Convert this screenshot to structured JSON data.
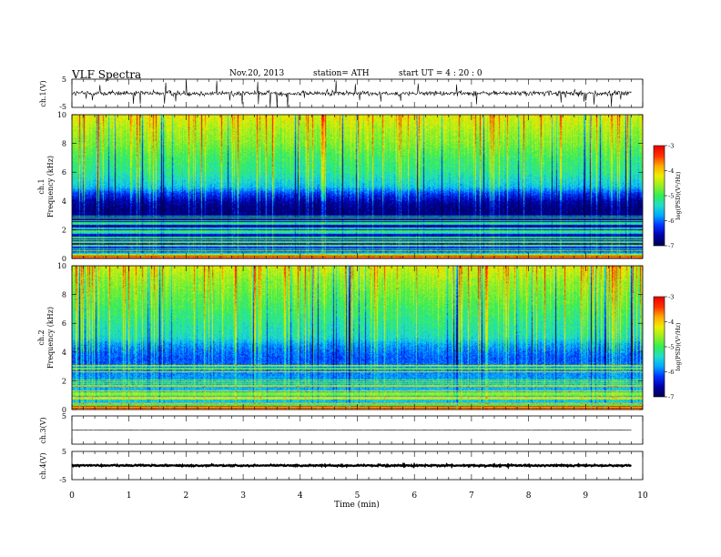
{
  "header": {
    "title": "VLF  Spectra",
    "date": "Nov.20, 2013",
    "station": "station= ATH",
    "start": "start  UT  =   4  : 20 : 0"
  },
  "colors": {
    "colormap": [
      "#000055",
      "#0000aa",
      "#0033ff",
      "#00aaff",
      "#22ddcc",
      "#33ee55",
      "#99ee22",
      "#eeee00",
      "#ffaa00",
      "#ff3300",
      "#ee0000",
      "#ffffff"
    ],
    "trace": "#000000",
    "frame": "#000000"
  },
  "chart_data": [
    {
      "type": "line",
      "panel": "ch1-waveform",
      "ylabel": "ch.1(V)",
      "ylim": [
        -5,
        5
      ],
      "yticks": [
        "5",
        "-5"
      ],
      "xlim": [
        0,
        10
      ],
      "signal_extent_min": 9.8,
      "baseline_v": 0,
      "noise_amplitude_v": 0.9,
      "impulsive_spikes": true
    },
    {
      "type": "heatmap",
      "panel": "ch1-spectrogram",
      "ylabel_top": "ch.1",
      "ylabel": "Frequency  (kHz)",
      "ylim": [
        0,
        10
      ],
      "yticks": [
        "0",
        "2",
        "4",
        "6",
        "8",
        "10"
      ],
      "xlim": [
        0,
        10
      ],
      "colorbar": {
        "label": "log(PSD)(V²/Hz)",
        "range": [
          -7,
          -3
        ],
        "ticks": [
          "-3",
          "-4",
          "-5",
          "-6",
          "-7"
        ]
      },
      "freq_profile_khz": [
        0,
        0.5,
        1,
        1.5,
        2,
        2.5,
        3,
        3.5,
        4,
        4.5,
        5,
        6,
        7,
        8,
        9,
        10
      ],
      "logpsd_profile": [
        -3.6,
        -6.3,
        -6.4,
        -6.5,
        -6.5,
        -6.7,
        -6.8,
        -6.8,
        -6.6,
        -6.2,
        -5.6,
        -5.2,
        -5.0,
        -4.7,
        -4.5,
        -4.2
      ]
    },
    {
      "type": "heatmap",
      "panel": "ch2-spectrogram",
      "ylabel_top": "ch.2",
      "ylabel": "Frequency  (kHz)",
      "ylim": [
        0,
        10
      ],
      "yticks": [
        "0",
        "2",
        "4",
        "6",
        "8",
        "10"
      ],
      "xlim": [
        0,
        10
      ],
      "colorbar": {
        "label": "log(PSD)(V²/Hz)",
        "range": [
          -7,
          -3
        ],
        "ticks": [
          "-3",
          "-4",
          "-5",
          "-6",
          "-7"
        ]
      },
      "freq_profile_khz": [
        0,
        0.5,
        1,
        1.5,
        2,
        2.5,
        3,
        3.5,
        4,
        4.5,
        5,
        6,
        7,
        8,
        9,
        10
      ],
      "logpsd_profile": [
        -4.0,
        -5.6,
        -5.7,
        -5.7,
        -5.8,
        -5.9,
        -6.0,
        -6.1,
        -6.0,
        -5.8,
        -5.4,
        -5.2,
        -5.0,
        -4.8,
        -4.6,
        -4.3
      ]
    },
    {
      "type": "line",
      "panel": "ch3-waveform",
      "ylabel": "ch.3(V)",
      "ylim": [
        -5,
        5
      ],
      "yticks": [
        "5"
      ],
      "xlim": [
        0,
        10
      ],
      "signal_extent_min": 9.8,
      "baseline_v": 0,
      "noise_amplitude_v": 0.05
    },
    {
      "type": "line",
      "panel": "ch4-waveform",
      "ylabel": "ch.4(V)",
      "ylim": [
        -5,
        5
      ],
      "yticks": [
        "5",
        "-5"
      ],
      "xlim": [
        0,
        10
      ],
      "signal_extent_min": 9.8,
      "baseline_v": 0,
      "noise_amplitude_v": 0.25
    }
  ],
  "x_axis": {
    "label": "Time  (min)",
    "ticks": [
      "0",
      "1",
      "2",
      "3",
      "4",
      "5",
      "6",
      "7",
      "8",
      "9",
      "10"
    ]
  }
}
